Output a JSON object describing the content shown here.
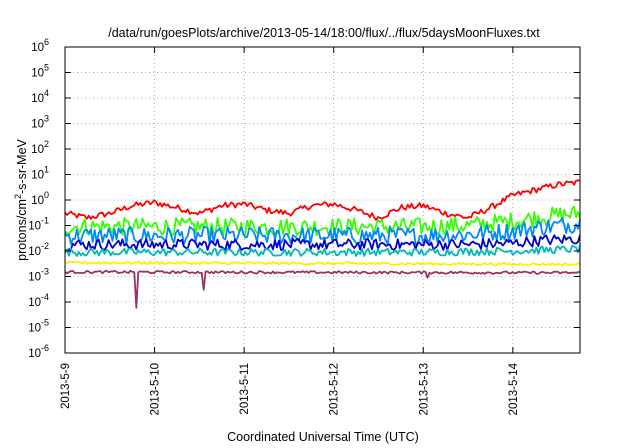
{
  "chart_data": {
    "type": "line",
    "title": "/data/run/goesPlots/archive/2013-05-14/18:00/flux/../flux/5daysMoonFluxes.txt",
    "xlabel": "Coordinated Universal Time (UTC)",
    "ylabel": {
      "prefix": "protons/cm",
      "sup": "2",
      "suffix": "-s-sr-MeV"
    },
    "yscale": "log",
    "ylim": [
      1e-06,
      1000000.0
    ],
    "yticks": [
      {
        "value": 1e-06,
        "base": "10",
        "exp": "-6"
      },
      {
        "value": 1e-05,
        "base": "10",
        "exp": "-5"
      },
      {
        "value": 0.0001,
        "base": "10",
        "exp": "-4"
      },
      {
        "value": 0.001,
        "base": "10",
        "exp": "-3"
      },
      {
        "value": 0.01,
        "base": "10",
        "exp": "-2"
      },
      {
        "value": 0.1,
        "base": "10",
        "exp": "-1"
      },
      {
        "value": 1.0,
        "base": "10",
        "exp": "0"
      },
      {
        "value": 10.0,
        "base": "10",
        "exp": "1"
      },
      {
        "value": 100.0,
        "base": "10",
        "exp": "2"
      },
      {
        "value": 1000.0,
        "base": "10",
        "exp": "3"
      },
      {
        "value": 10000.0,
        "base": "10",
        "exp": "4"
      },
      {
        "value": 100000.0,
        "base": "10",
        "exp": "5"
      },
      {
        "value": 1000000.0,
        "base": "10",
        "exp": "6"
      }
    ],
    "xlim": [
      "2013-05-09 00:00",
      "2013-05-14 18:00"
    ],
    "xticks": [
      "2013-5-9",
      "2013-5-10",
      "2013-5-11",
      "2013-5-12",
      "2013-5-13",
      "2013-5-14"
    ],
    "xtick_dates": [
      "2013-05-09",
      "2013-05-10",
      "2013-05-11",
      "2013-05-12",
      "2013-05-13",
      "2013-05-14"
    ],
    "grid": true,
    "series": [
      {
        "color": "#ff0000",
        "x_days": [
          0,
          0.25,
          0.5,
          0.75,
          1,
          1.25,
          1.5,
          1.75,
          2,
          2.25,
          2.5,
          2.75,
          3,
          3.25,
          3.5,
          3.75,
          4,
          4.25,
          4.5,
          4.75,
          5,
          5.25,
          5.5,
          5.75
        ],
        "values": [
          0.3,
          0.2,
          0.3,
          0.6,
          0.8,
          0.5,
          0.3,
          0.6,
          0.7,
          0.4,
          0.3,
          0.6,
          0.7,
          0.4,
          0.2,
          0.5,
          0.6,
          0.3,
          0.2,
          0.5,
          1.5,
          2.5,
          4.0,
          5.0
        ],
        "noise": 0.12
      },
      {
        "color": "#33ff00",
        "x_days": [
          0,
          1,
          2,
          3,
          4,
          4.5,
          5,
          5.25,
          5.5,
          5.75
        ],
        "values": [
          0.09,
          0.09,
          0.09,
          0.09,
          0.09,
          0.1,
          0.15,
          0.2,
          0.25,
          0.3
        ],
        "noise": 0.35
      },
      {
        "color": "#0088ff",
        "x_days": [
          0,
          1,
          2,
          3,
          4,
          4.5,
          5,
          5.25,
          5.5,
          5.75
        ],
        "values": [
          0.04,
          0.04,
          0.04,
          0.04,
          0.04,
          0.045,
          0.06,
          0.08,
          0.1,
          0.12
        ],
        "noise": 0.35
      },
      {
        "color": "#0000cc",
        "x_days": [
          0,
          1,
          2,
          3,
          4,
          4.5,
          5,
          5.25,
          5.5,
          5.75
        ],
        "values": [
          0.018,
          0.018,
          0.018,
          0.018,
          0.018,
          0.018,
          0.02,
          0.025,
          0.028,
          0.03
        ],
        "noise": 0.22
      },
      {
        "color": "#00b8b8",
        "x_days": [
          0,
          1,
          2,
          3,
          4,
          5,
          5.75
        ],
        "values": [
          0.009,
          0.009,
          0.009,
          0.009,
          0.009,
          0.01,
          0.012
        ],
        "noise": 0.15
      },
      {
        "color": "#ffee00",
        "x_days": [
          0,
          5.75
        ],
        "values": [
          0.0035,
          0.003
        ],
        "noise": 0.05
      },
      {
        "color": "#993366",
        "x_days": [
          0,
          5.75
        ],
        "values": [
          0.0015,
          0.0014
        ],
        "noise": 0.05,
        "dips": [
          {
            "x_day": 0.8,
            "value": 6e-05
          },
          {
            "x_day": 1.55,
            "value": 0.0003
          },
          {
            "x_day": 4.05,
            "value": 0.0009
          }
        ]
      }
    ]
  }
}
